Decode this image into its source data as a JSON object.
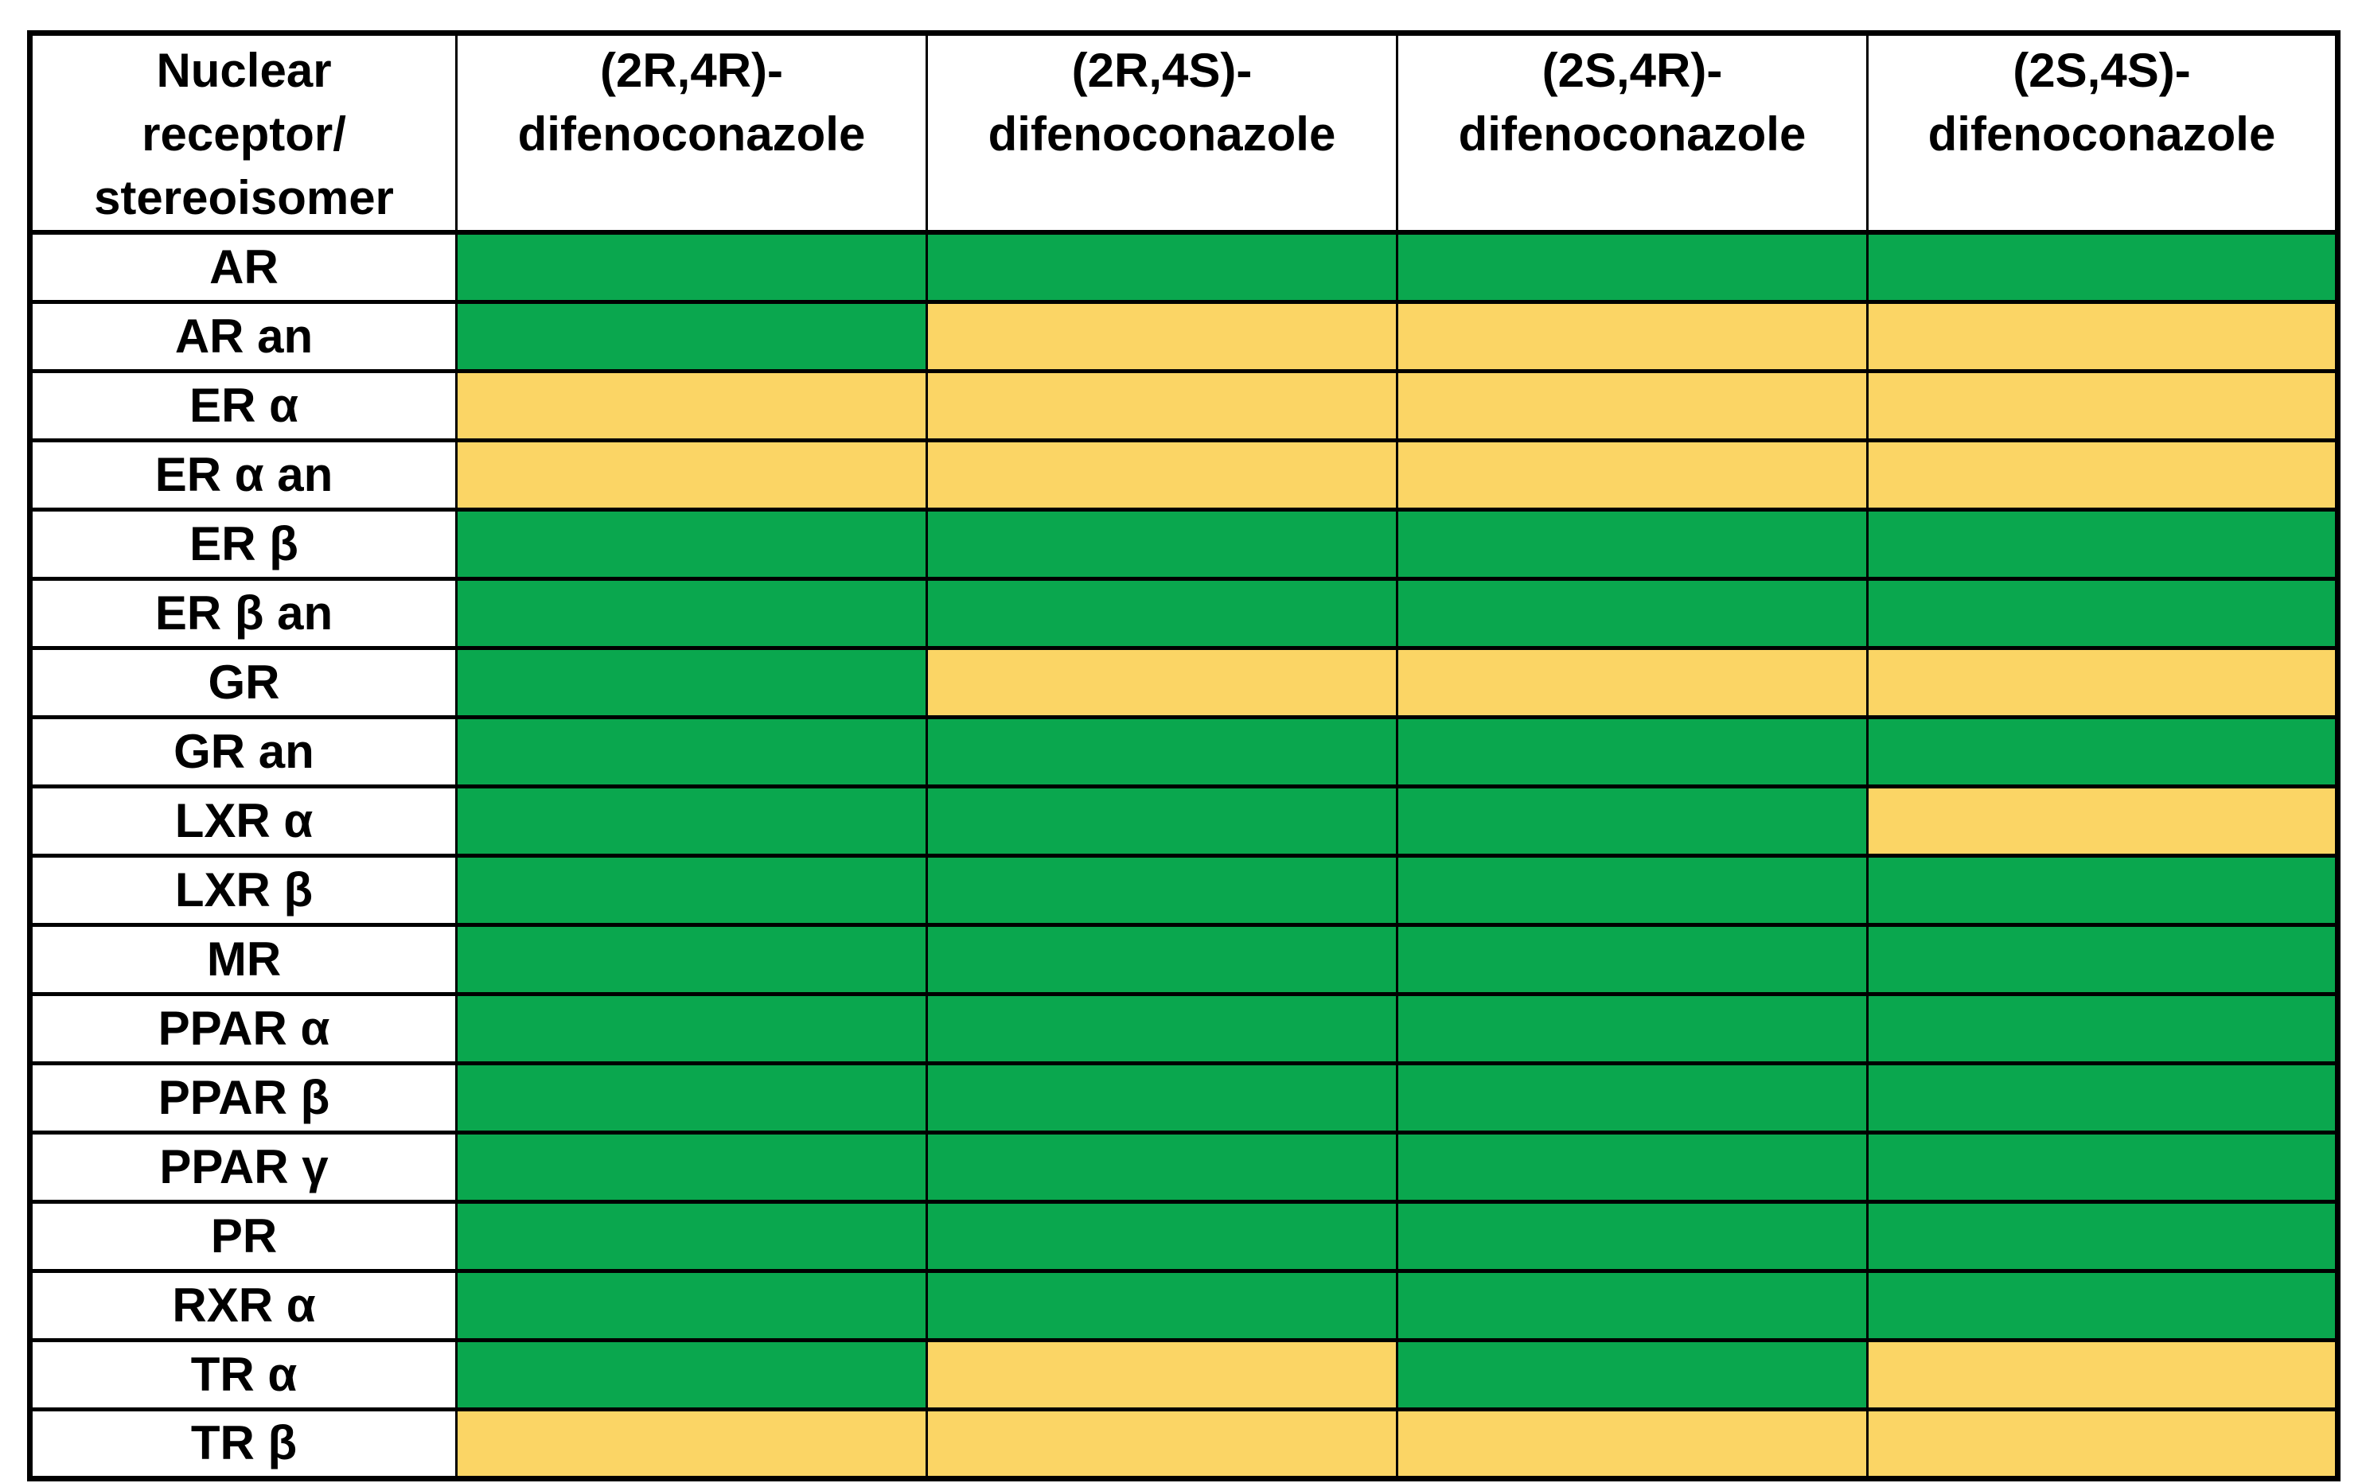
{
  "chart_data": {
    "type": "heatmap",
    "corner_header": "Nuclear\nreceptor/\nstereoisomer",
    "columns": [
      "(2R,4R)-\ndifenoconazole",
      "(2R,4S)-\ndifenoconazole",
      "(2S,4R)-\ndifenoconazole",
      "(2S,4S)-\ndifenoconazole"
    ],
    "x_categories": [
      "(2R,4R)-difenoconazole",
      "(2R,4S)-difenoconazole",
      "(2S,4R)-difenoconazole",
      "(2S,4S)-difenoconazole"
    ],
    "y_categories": [
      "AR",
      "AR an",
      "ER α",
      "ER α an",
      "ER β",
      "ER β an",
      "GR",
      "GR an",
      "LXR α",
      "LXR β",
      "MR",
      "PPAR α",
      "PPAR β",
      "PPAR γ",
      "PR",
      "RXR α",
      "TR α",
      "TR β"
    ],
    "palette": {
      "green": "#0aa74e",
      "yellow": "#fbd565"
    },
    "grid": "on",
    "legend_position": "none",
    "rows": [
      {
        "label": "AR",
        "values": [
          "green",
          "green",
          "green",
          "green"
        ]
      },
      {
        "label": "AR an",
        "values": [
          "green",
          "yellow",
          "yellow",
          "yellow"
        ]
      },
      {
        "label": "ER α",
        "values": [
          "yellow",
          "yellow",
          "yellow",
          "yellow"
        ]
      },
      {
        "label": "ER α an",
        "values": [
          "yellow",
          "yellow",
          "yellow",
          "yellow"
        ]
      },
      {
        "label": "ER β",
        "values": [
          "green",
          "green",
          "green",
          "green"
        ]
      },
      {
        "label": "ER β an",
        "values": [
          "green",
          "green",
          "green",
          "green"
        ]
      },
      {
        "label": "GR",
        "values": [
          "green",
          "yellow",
          "yellow",
          "yellow"
        ]
      },
      {
        "label": "GR an",
        "values": [
          "green",
          "green",
          "green",
          "green"
        ]
      },
      {
        "label": "LXR α",
        "values": [
          "green",
          "green",
          "green",
          "yellow"
        ]
      },
      {
        "label": "LXR β",
        "values": [
          "green",
          "green",
          "green",
          "green"
        ]
      },
      {
        "label": "MR",
        "values": [
          "green",
          "green",
          "green",
          "green"
        ]
      },
      {
        "label": "PPAR α",
        "values": [
          "green",
          "green",
          "green",
          "green"
        ]
      },
      {
        "label": "PPAR β",
        "values": [
          "green",
          "green",
          "green",
          "green"
        ]
      },
      {
        "label": "PPAR γ",
        "values": [
          "green",
          "green",
          "green",
          "green"
        ]
      },
      {
        "label": "PR",
        "values": [
          "green",
          "green",
          "green",
          "green"
        ]
      },
      {
        "label": "RXR α",
        "values": [
          "green",
          "green",
          "green",
          "green"
        ]
      },
      {
        "label": "TR α",
        "values": [
          "green",
          "yellow",
          "green",
          "yellow"
        ]
      },
      {
        "label": "TR β",
        "values": [
          "yellow",
          "yellow",
          "yellow",
          "yellow"
        ]
      }
    ]
  }
}
